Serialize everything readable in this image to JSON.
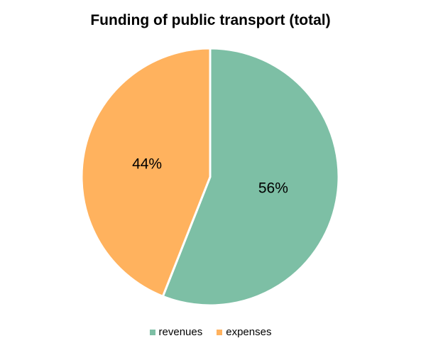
{
  "chart_data": {
    "type": "pie",
    "title": "Funding of public transport (total)",
    "categories": [
      "revenues",
      "expenses"
    ],
    "values": [
      56,
      44
    ],
    "data_labels": [
      "56%",
      "44%"
    ],
    "colors": [
      "#7dbfa5",
      "#ffb25e"
    ],
    "start_angle_deg": 0,
    "direction": "clockwise",
    "legend_position": "bottom"
  }
}
